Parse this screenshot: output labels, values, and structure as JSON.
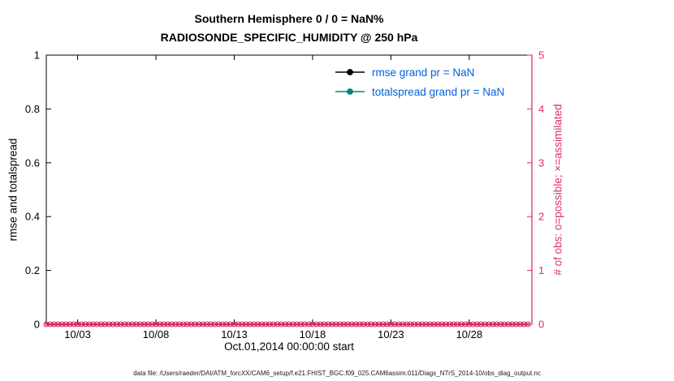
{
  "chart_data": {
    "type": "line",
    "title": "Southern Hemisphere 0 / 0 = NaN%",
    "subtitle": "RADIOSONDE_SPECIFIC_HUMIDITY @ 250 hPa",
    "xlabel": "Oct.01,2014 00:00:00 start",
    "ylabel_left": "rmse and totalspread",
    "ylabel_right": "# of obs: o=possible; ×=assimilated",
    "xlim": [
      1,
      32
    ],
    "xticks": [
      3,
      8,
      13,
      18,
      23,
      28
    ],
    "xtick_labels": [
      "10/03",
      "10/08",
      "10/13",
      "10/18",
      "10/23",
      "10/28"
    ],
    "ylim_left": [
      0,
      1
    ],
    "yticks_left": [
      0,
      0.2,
      0.4,
      0.6,
      0.8,
      1
    ],
    "ytick_labels_left": [
      "0",
      "0.2",
      "0.4",
      "0.6",
      "0.8",
      "1"
    ],
    "ylim_right": [
      0,
      5
    ],
    "yticks_right": [
      0,
      1,
      2,
      3,
      4,
      5
    ],
    "ytick_labels_right": [
      "0",
      "1",
      "2",
      "3",
      "4",
      "5"
    ],
    "grid": false,
    "legend_position": "upper-right-inside",
    "series": [
      {
        "name": "rmse",
        "legend": "rmse grand pr = NaN",
        "color": "#000000",
        "marker": "filled-circle",
        "x": [],
        "values": []
      },
      {
        "name": "totalspread",
        "legend": "totalspread grand pr = NaN",
        "color": "#008577",
        "marker": "filled-circle",
        "x": [],
        "values": []
      }
    ],
    "obs_counts": {
      "label": "# of obs",
      "color": "#df2e6e",
      "possible_marker": "o",
      "assimilated_marker": "×",
      "value": 0,
      "x_start": 1,
      "x_end": 31.75,
      "x_step": 0.25
    },
    "colors": {
      "right_axis": "#df2e6e",
      "legend_text": "#0060df",
      "axis": "#000000"
    }
  },
  "footer": {
    "text": "data file: /Users/raeder/DAI/ATM_forcXX/CAM6_setup/f.e21.FHIST_BGC.f09_025.CAM6assim.011/Diags_NTrS_2014-10/obs_diag_output.nc"
  }
}
